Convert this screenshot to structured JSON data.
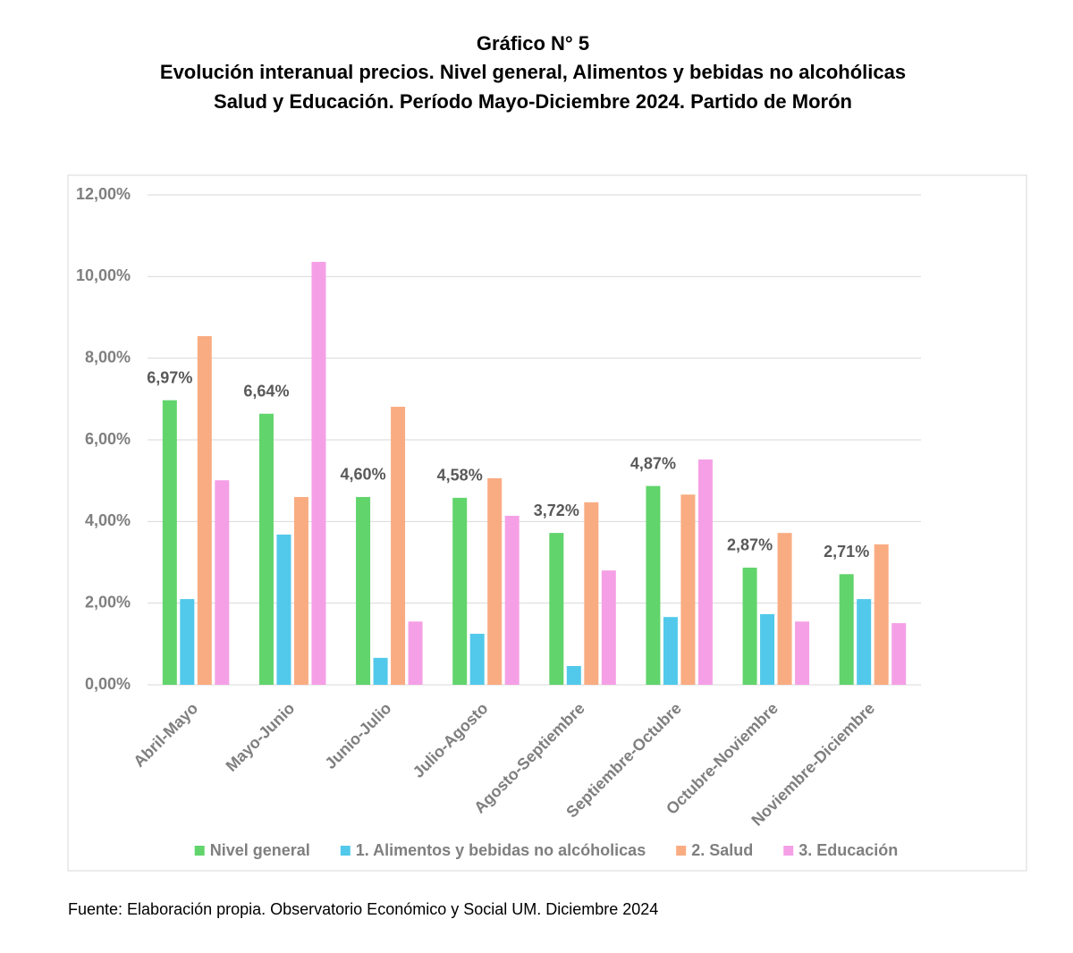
{
  "chart_data": {
    "type": "bar",
    "title": "Gráfico N° 5",
    "subtitle": [
      "Evolución interanual precios. Nivel general, Alimentos y bebidas no alcohólicas",
      "Salud y Educación. Período Mayo-Diciembre 2024. Partido de Morón"
    ],
    "categories": [
      "Abril-Mayo",
      "Mayo-Junio",
      "Junio-Julio",
      "Julio-Agosto",
      "Agosto-Septiembre",
      "Septiembre-Octubre",
      "Octubre-Noviembre",
      "Noviembre-Diciembre"
    ],
    "series": [
      {
        "name": "Nivel general",
        "color": "#61d46c",
        "values": [
          6.97,
          6.64,
          4.6,
          4.58,
          3.72,
          4.87,
          2.87,
          2.71
        ],
        "value_labels": [
          "6,97%",
          "6,64%",
          "4,60%",
          "4,58%",
          "3,72%",
          "4,87%",
          "2,87%",
          "2,71%"
        ]
      },
      {
        "name": "1. Alimentos y bebidas no alcóholicas",
        "color": "#52c9ea",
        "values": [
          2.1,
          3.68,
          0.66,
          1.25,
          0.46,
          1.66,
          1.73,
          2.1
        ]
      },
      {
        "name": "2. Salud",
        "color": "#f9ac82",
        "values": [
          8.54,
          4.6,
          6.81,
          5.06,
          4.47,
          4.66,
          3.72,
          3.44
        ]
      },
      {
        "name": "3. Educación",
        "color": "#f5a0e6",
        "values": [
          5.01,
          10.36,
          1.55,
          4.14,
          2.8,
          5.52,
          1.55,
          1.51
        ]
      }
    ],
    "ylim": [
      0,
      12
    ],
    "yticks": [
      {
        "value": 0,
        "label": "0,00%"
      },
      {
        "value": 2,
        "label": "2,00%"
      },
      {
        "value": 4,
        "label": "4,00%"
      },
      {
        "value": 6,
        "label": "6,00%"
      },
      {
        "value": 8,
        "label": "8,00%"
      },
      {
        "value": 10,
        "label": "10,00%"
      },
      {
        "value": 12,
        "label": "12,00%"
      }
    ],
    "grid": true,
    "legend": "bottom",
    "source": "Fuente: Elaboración propia. Observatorio Económico y Social UM. Diciembre 2024"
  }
}
